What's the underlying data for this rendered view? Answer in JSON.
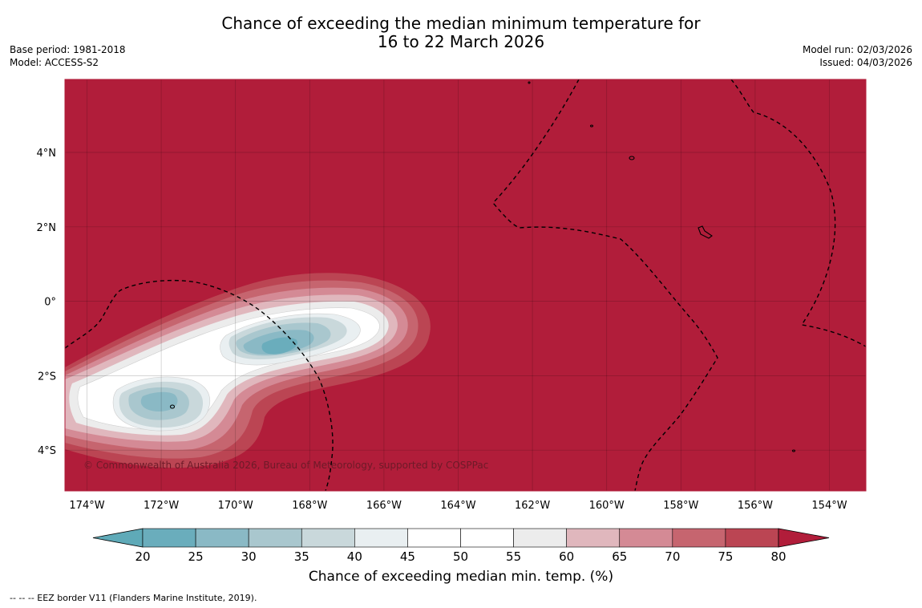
{
  "header": {
    "title_line1": "Chance of exceeding the median minimum temperature for",
    "title_line2": "16 to 22 March 2026",
    "base_period": "Base period: 1981-2018",
    "model": "Model: ACCESS-S2",
    "model_run": "Model run: 02/03/2026",
    "issued": "Issued: 04/03/2026"
  },
  "map": {
    "lon_labels": [
      "174°W",
      "172°W",
      "170°W",
      "168°W",
      "166°W",
      "164°W",
      "162°W",
      "160°W",
      "158°W",
      "156°W",
      "154°W"
    ],
    "lat_labels": [
      "4°N",
      "2°N",
      "0°",
      "2°S",
      "4°S"
    ],
    "copyright": "© Commonwealth of Australia 2026, Bureau of Meteorology, supported by COSPPac",
    "background_category_color": "#b11d3a"
  },
  "colorbar": {
    "ticks": [
      "20",
      "25",
      "30",
      "35",
      "40",
      "45",
      "50",
      "55",
      "60",
      "65",
      "70",
      "75",
      "80"
    ],
    "colors": [
      "#5faab8",
      "#6aadbc",
      "#8ab9c5",
      "#a9c7ce",
      "#c9d8db",
      "#e9eff1",
      "#ffffff",
      "#ffffff",
      "#ececec",
      "#e0b7bd",
      "#d48a95",
      "#c6656f",
      "#bb4553",
      "#b11d3a"
    ],
    "label": "Chance of exceeding median min. temp. (%)"
  },
  "footnote": "-- -- -- EEZ border V11 (Flanders Marine Institute, 2019)."
}
